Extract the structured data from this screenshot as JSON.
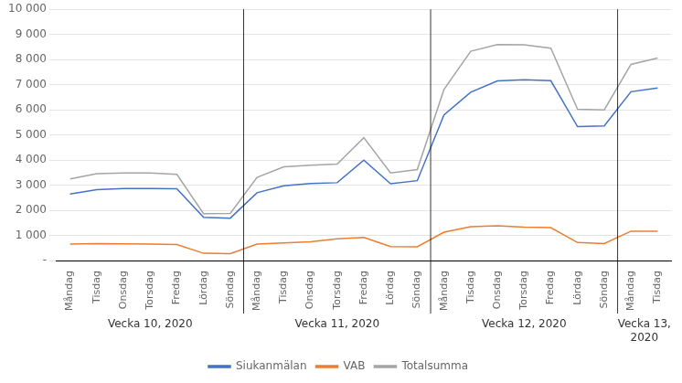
{
  "chart_data": {
    "type": "line",
    "categories": [
      "Måndag",
      "Tisdag",
      "Onsdag",
      "Torsdag",
      "Fredag",
      "Lördag",
      "Söndag",
      "Måndag",
      "Tisdag",
      "Onsdag",
      "Torsdag",
      "Fredag",
      "Lördag",
      "Söndag",
      "Måndag",
      "Tisdag",
      "Onsdag",
      "Torsdag",
      "Fredag",
      "Lördag",
      "Söndag",
      "Måndag",
      "Tisdag"
    ],
    "series": [
      {
        "name": "Siukanmälan",
        "color": "#4472C4",
        "values": [
          2650,
          2820,
          2870,
          2870,
          2860,
          1720,
          1690,
          2700,
          2980,
          3070,
          3100,
          4000,
          3060,
          3180,
          5800,
          6700,
          7150,
          7200,
          7160,
          5330,
          5360,
          6720,
          6870
        ]
      },
      {
        "name": "VAB",
        "color": "#ED7D31",
        "values": [
          660,
          680,
          670,
          660,
          640,
          290,
          280,
          660,
          700,
          750,
          870,
          920,
          560,
          550,
          1130,
          1350,
          1390,
          1330,
          1310,
          720,
          680,
          1170,
          1170
        ]
      },
      {
        "name": "Totalsumma",
        "color": "#A5A5A5",
        "values": [
          3250,
          3460,
          3490,
          3490,
          3430,
          1870,
          1880,
          3310,
          3730,
          3800,
          3840,
          4890,
          3490,
          3620,
          6810,
          8330,
          8600,
          8590,
          8450,
          6020,
          6000,
          7810,
          8060
        ]
      }
    ],
    "ylim": [
      0,
      10000
    ],
    "yticks": [
      {
        "value": 0,
        "label": "-"
      },
      {
        "value": 1000,
        "label": "1 000"
      },
      {
        "value": 2000,
        "label": "2 000"
      },
      {
        "value": 3000,
        "label": "3 000"
      },
      {
        "value": 4000,
        "label": "4 000"
      },
      {
        "value": 5000,
        "label": "5 000"
      },
      {
        "value": 6000,
        "label": "6 000"
      },
      {
        "value": 7000,
        "label": "7 000"
      },
      {
        "value": 8000,
        "label": "8 000"
      },
      {
        "value": 9000,
        "label": "9 000"
      },
      {
        "value": 10000,
        "label": "10 000"
      }
    ],
    "annotations": [
      {
        "text": "Vecka 10, 2020",
        "x": 3
      },
      {
        "text": "Vecka 11, 2020",
        "x": 10
      },
      {
        "text": "Vecka 12, 2020",
        "x": 17
      },
      {
        "text": "Vecka 13,\n2020",
        "x": 21.5
      }
    ],
    "separators": [
      6.5,
      13.5,
      20.5
    ],
    "grid": true,
    "legend": "bottom"
  }
}
